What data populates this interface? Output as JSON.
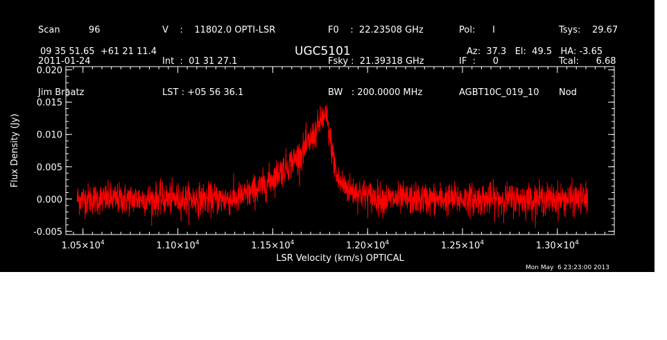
{
  "header": {
    "col1": [
      "Scan          96",
      "2011-01-24",
      "Jim Braatz"
    ],
    "col2": [
      "V    :    11802.0 OPTI-LSR",
      "Int  :  01 31 27.1",
      "LST : +05 56 36.1"
    ],
    "col3": [
      "F0    :  22.23508 GHz",
      "Fsky :  21.39318 GHz",
      "BW   : 200.0000 MHz"
    ],
    "col4": [
      "Pol:      I",
      "IF  :      0",
      "AGBT10C_019_10"
    ],
    "col5": [
      "Tsys:    29.67",
      "Tcal:      6.68",
      "Nod"
    ],
    "coords": "09 35 51.65  +61 21 11.4",
    "source": "UGC5101",
    "azel": "Az:  37.3   El:  49.5   HA: -3.65"
  },
  "timestamp": "Mon May  6 23:23:00 2013",
  "colors": {
    "background": "#000000",
    "axes": "#ffffff",
    "series": "#ff0000"
  },
  "chart_data": {
    "type": "line",
    "title": "UGC5101",
    "xlabel": "LSR Velocity (km/s) OPTICAL",
    "ylabel": "Flux Density (Jy)",
    "xlim": [
      10410,
      13300
    ],
    "ylim": [
      -0.0055,
      0.0205
    ],
    "xticks": [
      {
        "value": 10500,
        "mantissa": "1.05",
        "exp": "4"
      },
      {
        "value": 11000,
        "mantissa": "1.10",
        "exp": "4"
      },
      {
        "value": 11500,
        "mantissa": "1.15",
        "exp": "4"
      },
      {
        "value": 12000,
        "mantissa": "1.20",
        "exp": "4"
      },
      {
        "value": 12500,
        "mantissa": "1.25",
        "exp": "4"
      },
      {
        "value": 13000,
        "mantissa": "1.30",
        "exp": "4"
      }
    ],
    "x_times_symbol": "×10",
    "yticks": [
      {
        "value": -0.005,
        "label": "-0.005"
      },
      {
        "value": 0.0,
        "label": "0.000"
      },
      {
        "value": 0.005,
        "label": "0.005"
      },
      {
        "value": 0.01,
        "label": "0.010"
      },
      {
        "value": 0.015,
        "label": "0.015"
      },
      {
        "value": 0.02,
        "label": "0.020"
      }
    ],
    "series": [
      {
        "x_range": [
          10470,
          13160
        ],
        "profile": [
          {
            "x": 10470,
            "y": 0.0
          },
          {
            "x": 11300,
            "y": 0.0
          },
          {
            "x": 11350,
            "y": 0.0005
          },
          {
            "x": 11450,
            "y": 0.002
          },
          {
            "x": 11550,
            "y": 0.0045
          },
          {
            "x": 11650,
            "y": 0.007
          },
          {
            "x": 11720,
            "y": 0.01
          },
          {
            "x": 11760,
            "y": 0.0125
          },
          {
            "x": 11785,
            "y": 0.0125
          },
          {
            "x": 11810,
            "y": 0.008
          },
          {
            "x": 11840,
            "y": 0.003
          },
          {
            "x": 11900,
            "y": 0.0015
          },
          {
            "x": 12000,
            "y": 0.0005
          },
          {
            "x": 12100,
            "y": 0.0
          },
          {
            "x": 13160,
            "y": 0.0
          }
        ],
        "noise_rms": 0.0012
      }
    ]
  }
}
